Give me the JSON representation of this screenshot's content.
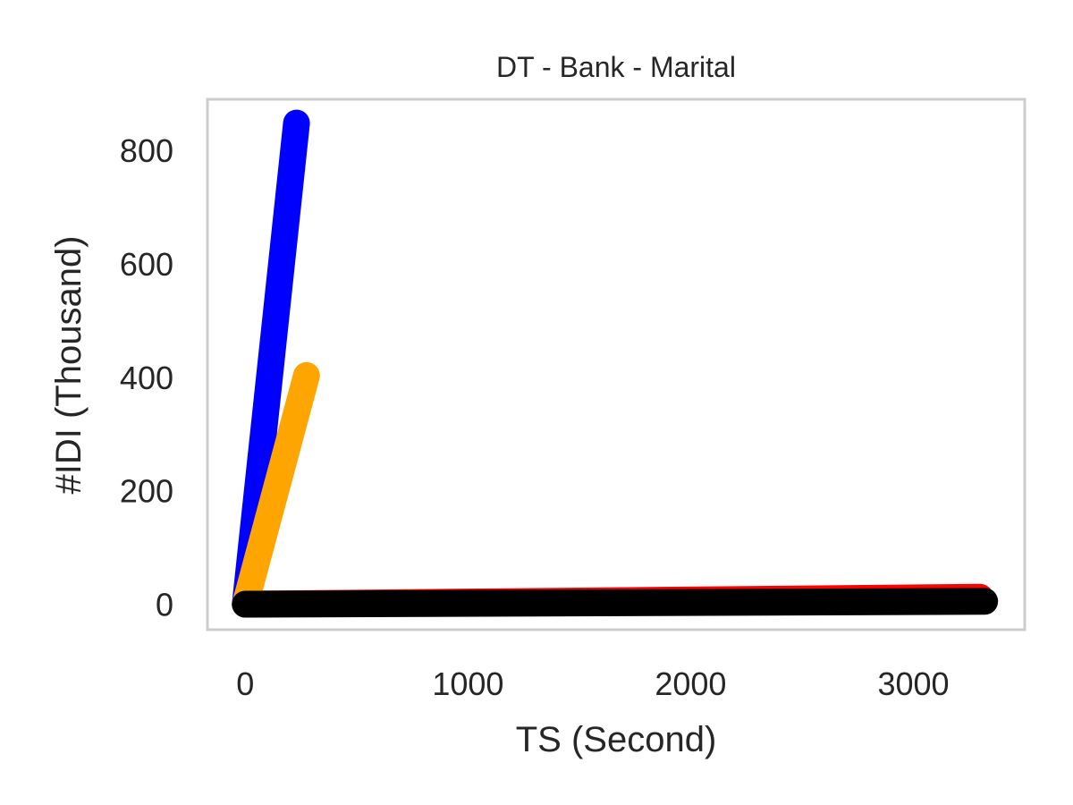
{
  "chart_data": {
    "type": "line",
    "title": "DT - Bank - Marital",
    "xlabel": "TS (Second)",
    "ylabel": "#IDI (Thousand)",
    "xlim": [
      -170,
      3500
    ],
    "ylim": [
      -45,
      890
    ],
    "xticks": [
      0,
      1000,
      2000,
      3000
    ],
    "yticks": [
      0,
      200,
      400,
      600,
      800
    ],
    "xtick_labels": [
      "0",
      "1000",
      "2000",
      "3000"
    ],
    "ytick_labels": [
      "0",
      "200",
      "400",
      "600",
      "800"
    ],
    "grid": false,
    "legend": "none",
    "series": [
      {
        "color": "#ff0000",
        "x": [
          0,
          3300
        ],
        "y": [
          0,
          12
        ]
      },
      {
        "color": "#0000ff",
        "x": [
          0,
          230
        ],
        "y": [
          0,
          848
        ]
      },
      {
        "color": "#ffa500",
        "x": [
          0,
          275
        ],
        "y": [
          0,
          403
        ]
      },
      {
        "color": "#000000",
        "x": [
          0,
          3320
        ],
        "y": [
          0,
          5
        ]
      }
    ]
  }
}
